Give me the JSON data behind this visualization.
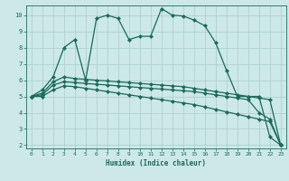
{
  "xlabel": "Humidex (Indice chaleur)",
  "background_color": "#cce8e8",
  "grid_color": "#aacccc",
  "line_color": "#1a6b5a",
  "xlim": [
    -0.5,
    23.5
  ],
  "ylim": [
    1.8,
    10.6
  ],
  "yticks": [
    2,
    3,
    4,
    5,
    6,
    7,
    8,
    9,
    10
  ],
  "xticks": [
    0,
    1,
    2,
    3,
    4,
    5,
    6,
    7,
    8,
    9,
    10,
    11,
    12,
    13,
    14,
    15,
    16,
    17,
    18,
    19,
    20,
    21,
    22,
    23
  ],
  "series": [
    {
      "x": [
        0,
        1,
        2,
        3,
        4,
        5,
        6,
        7,
        8,
        9,
        10,
        11,
        12,
        13,
        14,
        15,
        16,
        17,
        18,
        19,
        20,
        21,
        22,
        23
      ],
      "y": [
        5.0,
        5.4,
        6.2,
        8.0,
        8.5,
        6.0,
        9.8,
        10.0,
        9.8,
        8.5,
        8.7,
        8.7,
        10.4,
        10.0,
        9.95,
        9.7,
        9.35,
        8.3,
        6.6,
        5.0,
        5.0,
        5.0,
        2.5,
        2.0
      ]
    },
    {
      "x": [
        0,
        1,
        2,
        3,
        4,
        5,
        6,
        7,
        8,
        9,
        10,
        11,
        12,
        13,
        14,
        15,
        16,
        17,
        18,
        19,
        20,
        21,
        22,
        23
      ],
      "y": [
        5.0,
        5.2,
        5.9,
        6.2,
        6.1,
        6.05,
        6.0,
        5.95,
        5.9,
        5.85,
        5.8,
        5.75,
        5.7,
        5.65,
        5.6,
        5.5,
        5.4,
        5.3,
        5.2,
        5.1,
        5.0,
        4.9,
        4.8,
        2.0
      ]
    },
    {
      "x": [
        0,
        1,
        2,
        3,
        4,
        5,
        6,
        7,
        8,
        9,
        10,
        11,
        12,
        13,
        14,
        15,
        16,
        17,
        18,
        19,
        20,
        21,
        22,
        23
      ],
      "y": [
        5.0,
        5.1,
        5.7,
        5.9,
        5.85,
        5.8,
        5.75,
        5.7,
        5.65,
        5.6,
        5.55,
        5.5,
        5.45,
        5.4,
        5.35,
        5.3,
        5.2,
        5.1,
        5.0,
        4.9,
        4.8,
        4.0,
        3.6,
        2.0
      ]
    },
    {
      "x": [
        0,
        1,
        2,
        3,
        4,
        5,
        6,
        7,
        8,
        9,
        10,
        11,
        12,
        13,
        14,
        15,
        16,
        17,
        18,
        19,
        20,
        21,
        22,
        23
      ],
      "y": [
        5.0,
        5.0,
        5.4,
        5.65,
        5.6,
        5.5,
        5.4,
        5.3,
        5.2,
        5.1,
        5.0,
        4.9,
        4.8,
        4.7,
        4.6,
        4.5,
        4.35,
        4.2,
        4.05,
        3.9,
        3.75,
        3.6,
        3.45,
        2.0
      ]
    }
  ]
}
